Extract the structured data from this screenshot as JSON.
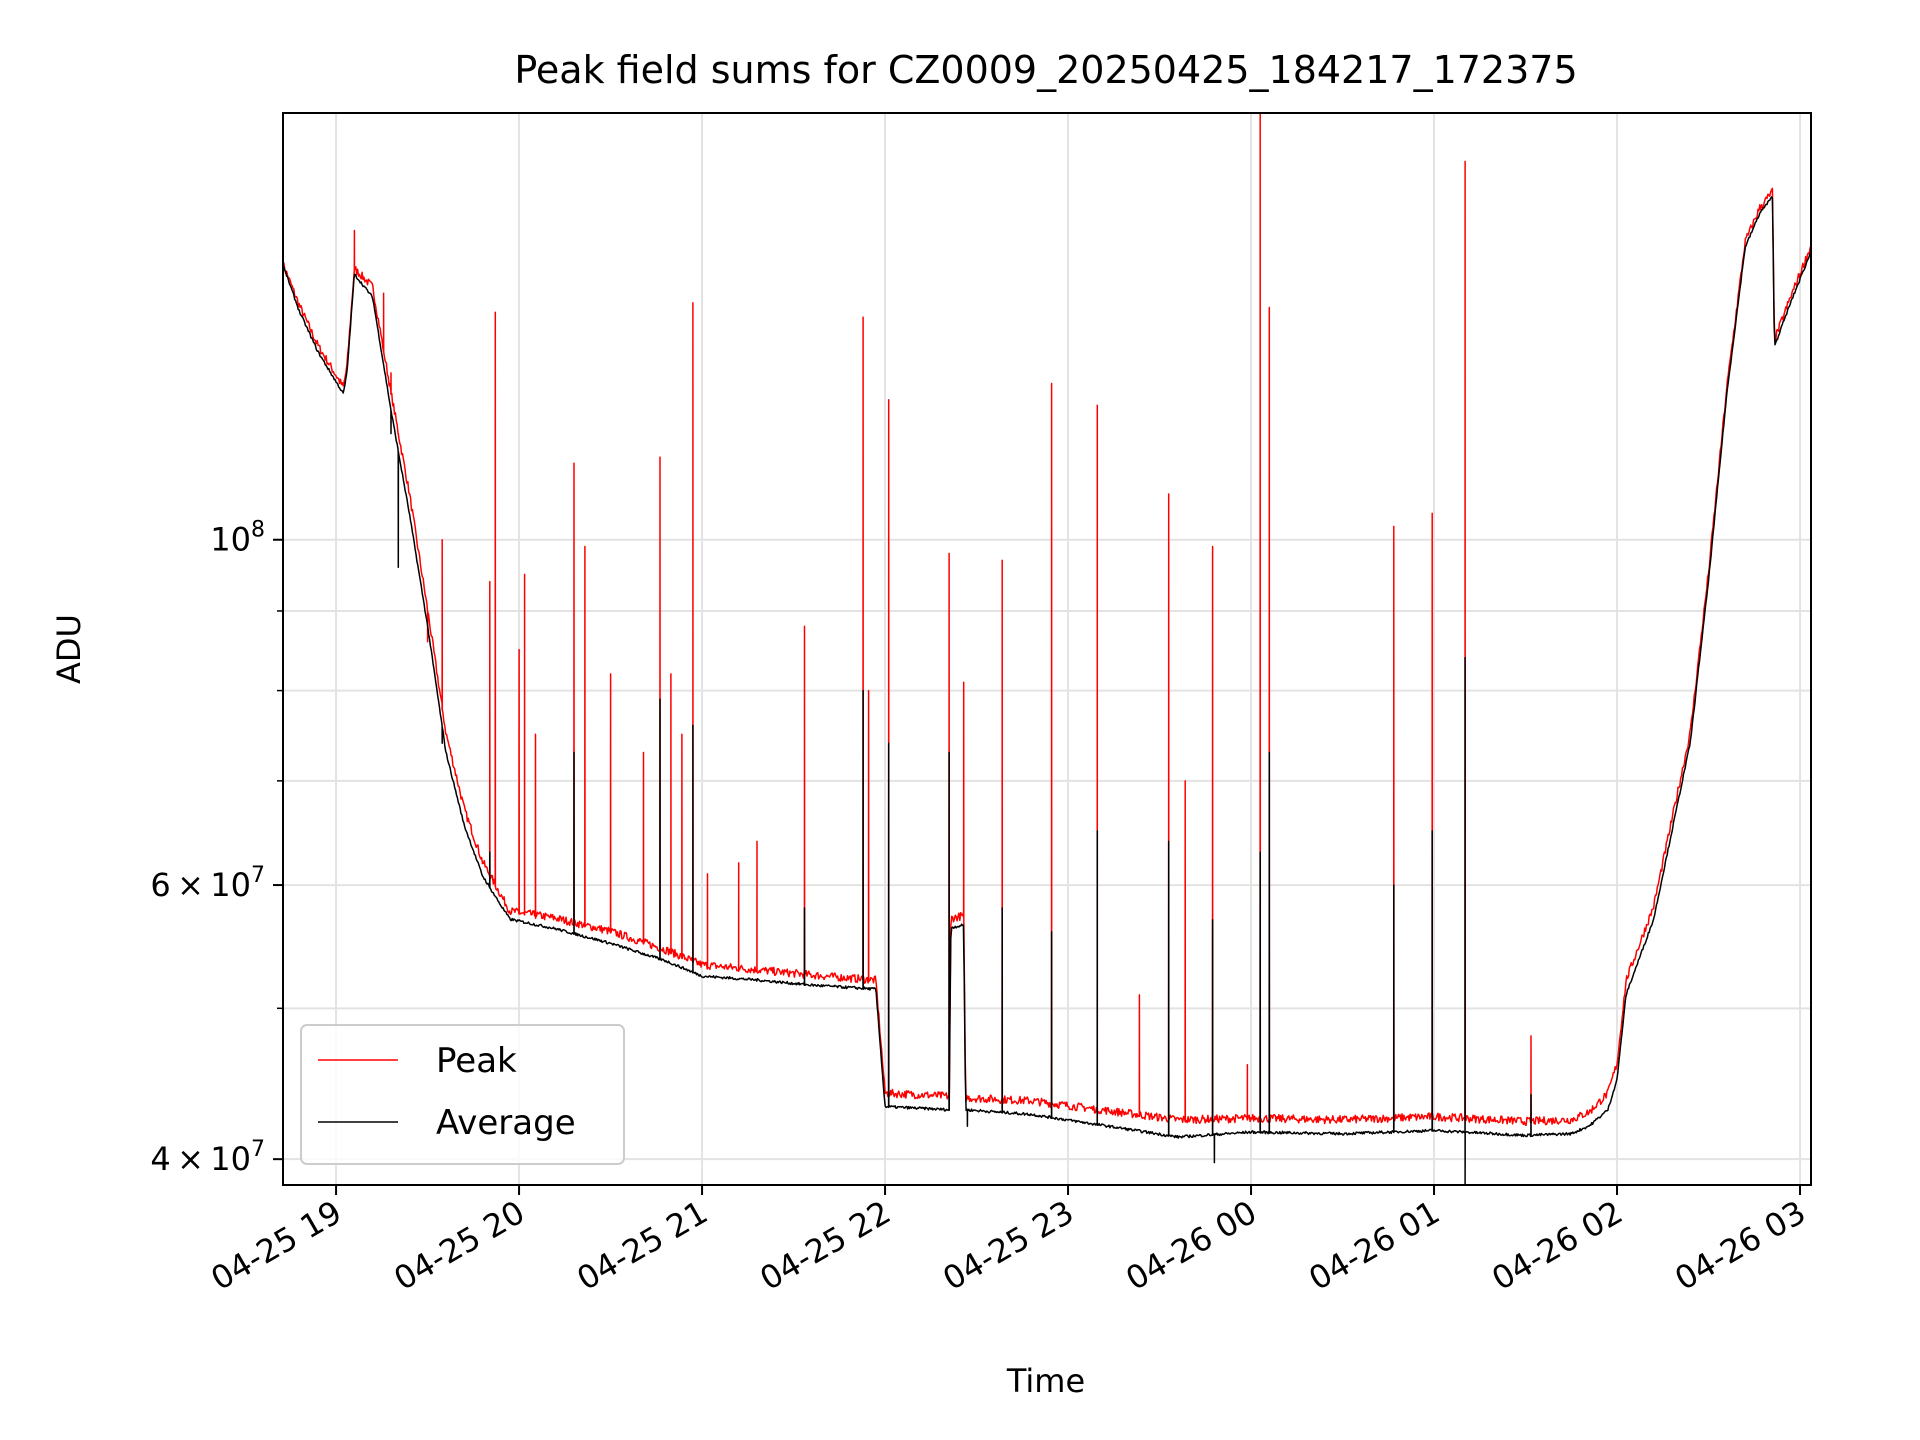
{
  "chart_data": {
    "type": "line",
    "title": "Peak field sums for CZ0009_20250425_184217_172375",
    "xlabel": "Time",
    "ylabel": "ADU",
    "yscale": "log",
    "grid": true,
    "legend_position": "lower-left",
    "xlim": [
      18.71,
      27.06
    ],
    "ylim": [
      38500000,
      188000000
    ],
    "x_units": "hours since 04-25 00:00",
    "x_ticks": [
      {
        "value": 19,
        "label": "04-25 19"
      },
      {
        "value": 20,
        "label": "04-25 20"
      },
      {
        "value": 21,
        "label": "04-25 21"
      },
      {
        "value": 22,
        "label": "04-25 22"
      },
      {
        "value": 23,
        "label": "04-25 23"
      },
      {
        "value": 24,
        "label": "04-26 00"
      },
      {
        "value": 25,
        "label": "04-26 01"
      },
      {
        "value": 26,
        "label": "04-26 02"
      },
      {
        "value": 27,
        "label": "04-26 03"
      }
    ],
    "y_ticks_major": [
      {
        "value": 40000000,
        "mantissa": "4",
        "exponent": "7"
      },
      {
        "value": 60000000,
        "mantissa": "6",
        "exponent": "7"
      },
      {
        "value": 100000000,
        "mantissa": "",
        "exponent": "8"
      }
    ],
    "y_ticks_minor": [
      50000000,
      70000000,
      80000000,
      90000000
    ],
    "series": [
      {
        "name": "Peak",
        "color": "#ff0000",
        "baseline": [
          [
            18.71,
            150000000
          ],
          [
            18.8,
            141000000
          ],
          [
            18.9,
            133000000
          ],
          [
            19.04,
            125000000
          ],
          [
            19.06,
            129000000
          ],
          [
            19.1,
            149000000
          ],
          [
            19.2,
            145000000
          ],
          [
            19.3,
            124000000
          ],
          [
            19.4,
            107000000
          ],
          [
            19.5,
            90000000
          ],
          [
            19.6,
            75000000
          ],
          [
            19.7,
            67000000
          ],
          [
            19.8,
            62000000
          ],
          [
            19.9,
            59000000
          ],
          [
            19.95,
            57600000
          ],
          [
            20.2,
            57000000
          ],
          [
            20.5,
            55900000
          ],
          [
            20.8,
            54400000
          ],
          [
            21.0,
            53200000
          ],
          [
            21.3,
            52800000
          ],
          [
            21.6,
            52400000
          ],
          [
            21.95,
            52000000
          ],
          [
            22.0,
            44000000
          ],
          [
            22.35,
            43800000
          ],
          [
            22.36,
            57000000
          ],
          [
            22.43,
            57200000
          ],
          [
            22.44,
            43700000
          ],
          [
            22.8,
            43500000
          ],
          [
            23.2,
            42900000
          ],
          [
            23.6,
            42300000
          ],
          [
            24.0,
            42400000
          ],
          [
            24.5,
            42300000
          ],
          [
            25.0,
            42500000
          ],
          [
            25.5,
            42200000
          ],
          [
            25.75,
            42300000
          ],
          [
            25.85,
            42800000
          ],
          [
            25.95,
            44000000
          ],
          [
            26.0,
            46000000
          ],
          [
            26.05,
            52000000
          ],
          [
            26.2,
            58000000
          ],
          [
            26.4,
            75000000
          ],
          [
            26.5,
            95000000
          ],
          [
            26.6,
            125000000
          ],
          [
            26.7,
            155000000
          ],
          [
            26.78,
            163000000
          ],
          [
            26.85,
            167000000
          ],
          [
            26.86,
            134000000
          ],
          [
            26.95,
            143000000
          ],
          [
            27.06,
            154000000
          ]
        ],
        "spikes": [
          [
            19.1,
            158000000
          ],
          [
            19.26,
            144000000
          ],
          [
            19.3,
            128000000
          ],
          [
            19.34,
            117000000
          ],
          [
            19.58,
            100000000
          ],
          [
            19.5,
            86000000
          ],
          [
            19.84,
            94000000
          ],
          [
            19.87,
            140000000
          ],
          [
            20.0,
            85000000
          ],
          [
            20.03,
            95000000
          ],
          [
            20.09,
            75000000
          ],
          [
            20.3,
            112000000
          ],
          [
            20.36,
            99000000
          ],
          [
            20.5,
            82000000
          ],
          [
            20.68,
            73000000
          ],
          [
            20.77,
            113000000
          ],
          [
            20.83,
            82000000
          ],
          [
            20.89,
            75000000
          ],
          [
            20.95,
            142000000
          ],
          [
            21.03,
            61000000
          ],
          [
            21.2,
            62000000
          ],
          [
            21.3,
            64000000
          ],
          [
            21.56,
            88000000
          ],
          [
            21.88,
            139000000
          ],
          [
            21.91,
            80000000
          ],
          [
            22.02,
            123000000
          ],
          [
            22.35,
            98000000
          ],
          [
            22.43,
            81000000
          ],
          [
            22.64,
            97000000
          ],
          [
            22.91,
            126000000
          ],
          [
            23.16,
            122000000
          ],
          [
            23.39,
            51000000
          ],
          [
            23.55,
            107000000
          ],
          [
            23.64,
            70000000
          ],
          [
            23.79,
            99000000
          ],
          [
            23.98,
            46000000
          ],
          [
            24.05,
            188000000
          ],
          [
            24.1,
            141000000
          ],
          [
            24.78,
            102000000
          ],
          [
            24.99,
            104000000
          ],
          [
            25.17,
            175000000
          ],
          [
            25.53,
            48000000
          ]
        ]
      },
      {
        "name": "Average",
        "color": "#000000",
        "baseline": [
          [
            18.71,
            150000000
          ],
          [
            18.8,
            140000000
          ],
          [
            18.9,
            132000000
          ],
          [
            19.04,
            124000000
          ],
          [
            19.06,
            128000000
          ],
          [
            19.1,
            148000000
          ],
          [
            19.2,
            143000000
          ],
          [
            19.3,
            121000000
          ],
          [
            19.4,
            104000000
          ],
          [
            19.5,
            88000000
          ],
          [
            19.6,
            73000000
          ],
          [
            19.7,
            65500000
          ],
          [
            19.8,
            60800000
          ],
          [
            19.9,
            58200000
          ],
          [
            19.95,
            57000000
          ],
          [
            20.2,
            56200000
          ],
          [
            20.5,
            55000000
          ],
          [
            20.8,
            53600000
          ],
          [
            21.0,
            52400000
          ],
          [
            21.3,
            52100000
          ],
          [
            21.6,
            51700000
          ],
          [
            21.95,
            51400000
          ],
          [
            22.0,
            43200000
          ],
          [
            22.35,
            43000000
          ],
          [
            22.36,
            56300000
          ],
          [
            22.43,
            56500000
          ],
          [
            22.44,
            43000000
          ],
          [
            22.8,
            42700000
          ],
          [
            23.2,
            42000000
          ],
          [
            23.6,
            41300000
          ],
          [
            24.0,
            41600000
          ],
          [
            24.5,
            41500000
          ],
          [
            25.0,
            41700000
          ],
          [
            25.5,
            41400000
          ],
          [
            25.75,
            41500000
          ],
          [
            25.85,
            42000000
          ],
          [
            25.95,
            43000000
          ],
          [
            26.0,
            45000000
          ],
          [
            26.05,
            51000000
          ],
          [
            26.2,
            57000000
          ],
          [
            26.4,
            74000000
          ],
          [
            26.5,
            94000000
          ],
          [
            26.6,
            124000000
          ],
          [
            26.7,
            154000000
          ],
          [
            26.78,
            162000000
          ],
          [
            26.85,
            166000000
          ],
          [
            26.86,
            133000000
          ],
          [
            26.95,
            142000000
          ],
          [
            27.06,
            153000000
          ]
        ],
        "spikes": [
          [
            19.3,
            117000000
          ],
          [
            19.58,
            74000000
          ],
          [
            19.84,
            63000000
          ],
          [
            20.3,
            73000000
          ],
          [
            20.77,
            79000000
          ],
          [
            20.95,
            76000000
          ],
          [
            21.56,
            58000000
          ],
          [
            21.88,
            80000000
          ],
          [
            22.02,
            74000000
          ],
          [
            22.35,
            73000000
          ],
          [
            22.64,
            58000000
          ],
          [
            22.91,
            56000000
          ],
          [
            23.16,
            65000000
          ],
          [
            23.55,
            64000000
          ],
          [
            23.79,
            57000000
          ],
          [
            24.05,
            63000000
          ],
          [
            24.1,
            73000000
          ],
          [
            24.78,
            60000000
          ],
          [
            24.99,
            65000000
          ],
          [
            25.17,
            84000000
          ],
          [
            25.53,
            44000000
          ]
        ],
        "dips": [
          [
            19.34,
            96000000
          ],
          [
            22.45,
            42000000
          ],
          [
            23.8,
            39800000
          ],
          [
            25.17,
            38500000
          ]
        ]
      }
    ]
  }
}
